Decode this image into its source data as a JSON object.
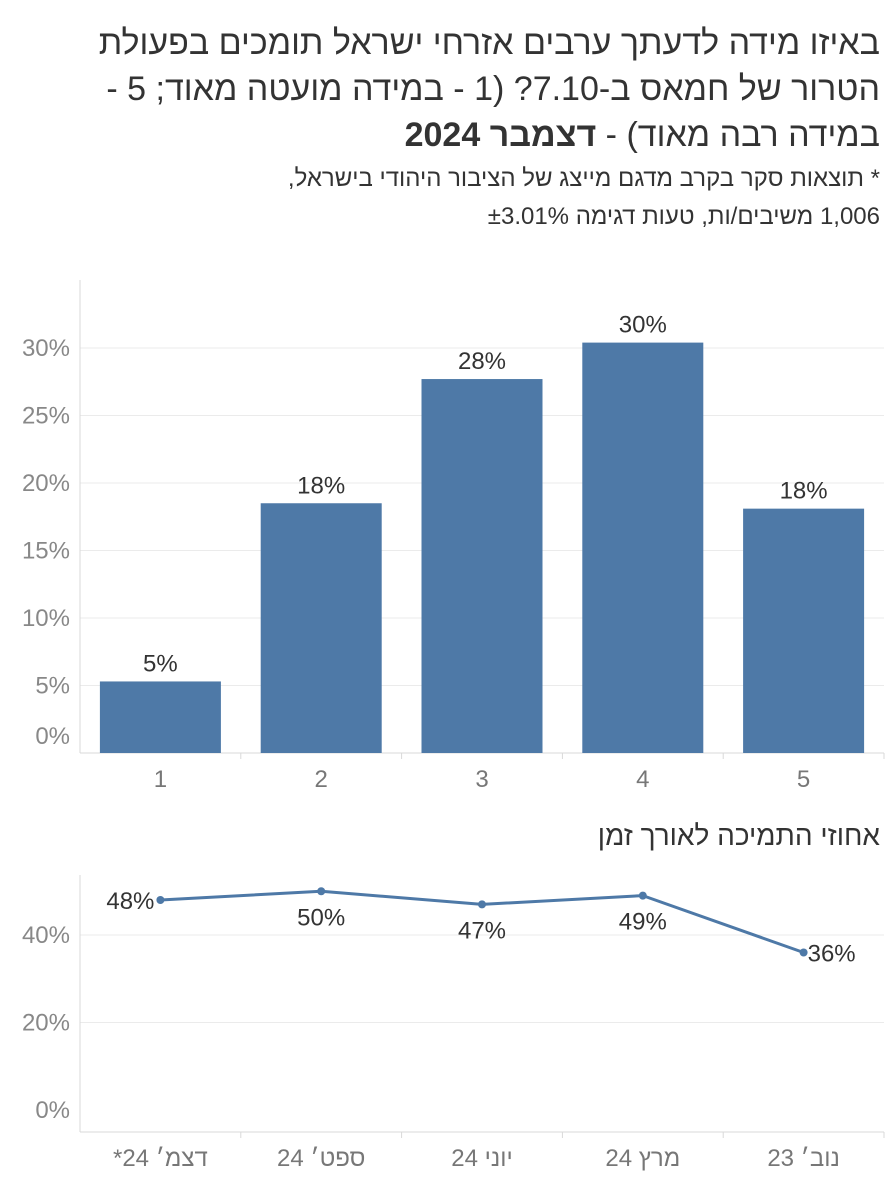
{
  "header": {
    "title_main": "באיזו מידה לדעתך ערבים אזרחי ישראל תומכים בפעולת הטרור של חמאס ב-7.10? (1 - במידה מועטה מאוד; 5 - במידה רבה מאוד) - ",
    "title_period": "דצמבר 2024",
    "note_line1": "* תוצאות סקר בקרב מדגם מייצג של הציבור היהודי בישראל,",
    "note_line2": "1,006 משיבים/ות, טעות דגימה ±3.01%"
  },
  "trend_title": "אחוזי התמיכה לאורך זמן",
  "colors": {
    "bar": "#4e79a7",
    "line": "#4e79a7",
    "grid": "#ebebeb",
    "axis": "#d9d9d9"
  },
  "chart_data": [
    {
      "type": "bar",
      "categories": [
        "1",
        "2",
        "3",
        "4",
        "5"
      ],
      "values": [
        5.3,
        18.5,
        27.7,
        30.4,
        18.1
      ],
      "labels": [
        "5%",
        "18%",
        "28%",
        "30%",
        "18%"
      ],
      "ylim": [
        0,
        35
      ],
      "yticks": [
        0,
        5,
        10,
        15,
        20,
        25,
        30
      ],
      "ytick_labels": [
        "0%",
        "5%",
        "10%",
        "15%",
        "20%",
        "25%",
        "30%"
      ],
      "grid": true
    },
    {
      "type": "line",
      "categories": [
        "דצמ׳ 24*",
        "ספט׳ 24",
        "יוני 24",
        "מרץ 24",
        "נוב׳ 23"
      ],
      "values": [
        48,
        50,
        47,
        49,
        36
      ],
      "labels": [
        "48%",
        "50%",
        "47%",
        "49%",
        "36%"
      ],
      "ylim": [
        0,
        55
      ],
      "yticks": [
        0,
        20,
        40
      ],
      "ytick_labels": [
        "0%",
        "20%",
        "40%"
      ],
      "grid": true
    }
  ]
}
